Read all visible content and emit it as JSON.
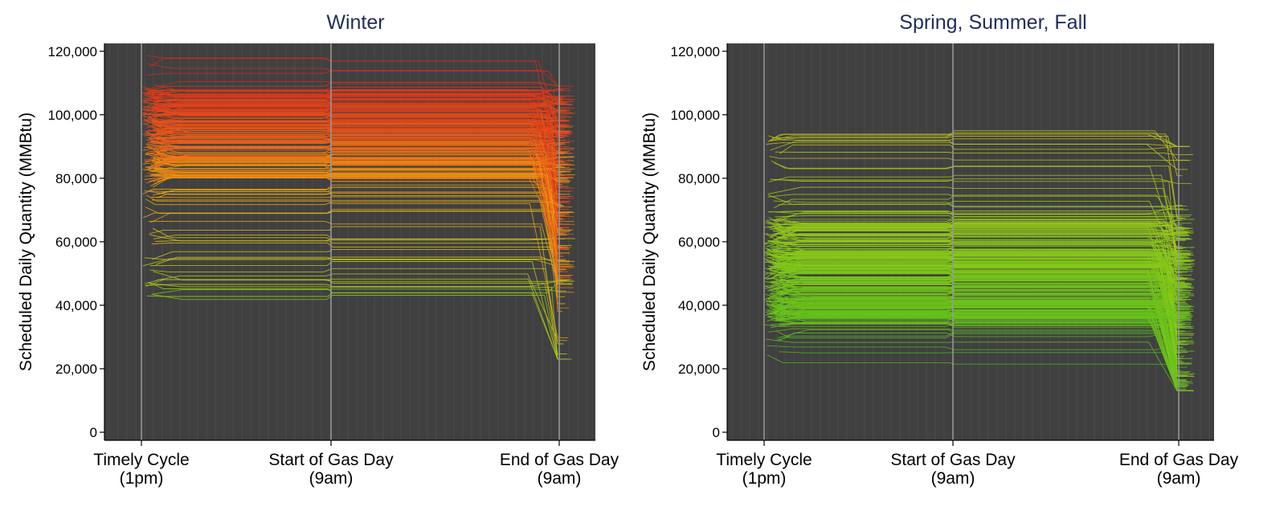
{
  "chart_data": [
    {
      "type": "line",
      "title": "Winter",
      "ylabel": "Scheduled Daily Quantity (MMBtu)",
      "xlabel": "",
      "ylim": [
        0,
        125000
      ],
      "yticks": [
        0,
        20000,
        40000,
        60000,
        80000,
        100000,
        120000
      ],
      "ytick_labels": [
        "0",
        "20,000",
        "40,000",
        "60,000",
        "80,000",
        "100,000",
        "120,000"
      ],
      "x_categories": [
        {
          "line1": "Timely Cycle",
          "line2": "(1pm)"
        },
        {
          "line1": "Start of Gas Day",
          "line2": "(9am)"
        },
        {
          "line1": "End of Gas Day",
          "line2": "(9am)"
        }
      ],
      "grid": true,
      "background": "#404040",
      "color_scale": [
        "#2db82d",
        "#7ec81a",
        "#d6c814",
        "#f0a010",
        "#e8501a",
        "#d42a1a"
      ],
      "series_summary": {
        "timely_range": [
          40000,
          119000
        ],
        "dense_band": [
          80000,
          108000
        ],
        "end_range": [
          23000,
          109000
        ]
      }
    },
    {
      "type": "line",
      "title": "Spring, Summer, Fall",
      "ylabel": "Scheduled Daily Quantity (MMBtu)",
      "xlabel": "",
      "ylim": [
        0,
        125000
      ],
      "yticks": [
        0,
        20000,
        40000,
        60000,
        80000,
        100000,
        120000
      ],
      "ytick_labels": [
        "0",
        "20,000",
        "40,000",
        "60,000",
        "80,000",
        "100,000",
        "120,000"
      ],
      "x_categories": [
        {
          "line1": "Timely Cycle",
          "line2": "(1pm)"
        },
        {
          "line1": "Start of Gas Day",
          "line2": "(9am)"
        },
        {
          "line1": "End of Gas Day",
          "line2": "(9am)"
        }
      ],
      "grid": true,
      "background": "#404040",
      "color_scale": [
        "#4cb81c",
        "#7ec81a",
        "#b4c818",
        "#d6b814"
      ],
      "series_summary": {
        "timely_range": [
          19000,
          95000
        ],
        "dense_band": [
          34000,
          66000
        ],
        "end_range": [
          13000,
          90000
        ]
      }
    }
  ]
}
